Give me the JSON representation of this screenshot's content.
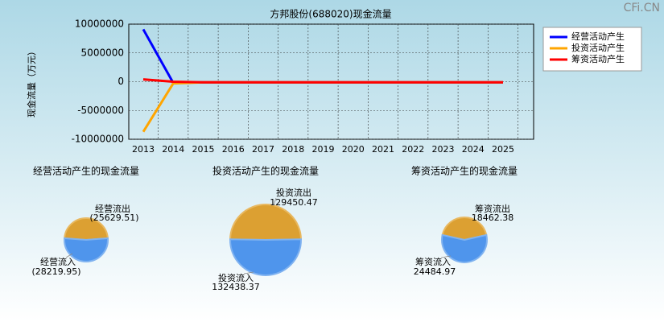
{
  "watermark": "CFi.CN",
  "chart_data": [
    {
      "type": "line",
      "title": "方邦股份(688020)现金流量",
      "ylabel": "现金流量（万元）",
      "categories": [
        "2013",
        "2014",
        "2015",
        "2016",
        "2017",
        "2018",
        "2019",
        "2020",
        "2021",
        "2022",
        "2023",
        "2024",
        "2025"
      ],
      "ylim": [
        -10000000,
        10000000
      ],
      "yticks": [
        -10000000,
        -5000000,
        0,
        5000000,
        10000000
      ],
      "grid": true,
      "series": [
        {
          "name": "经营活动产生",
          "color": "#0000ff",
          "values": [
            9100000,
            -200000,
            -100000,
            -100000,
            -100000,
            -100000,
            -100000,
            -100000,
            -100000,
            -100000,
            -100000,
            -100000,
            -100000
          ]
        },
        {
          "name": "投资活动产生",
          "color": "#ffa500",
          "values": [
            -8700000,
            -300000,
            -100000,
            -100000,
            -100000,
            -100000,
            -100000,
            -100000,
            -100000,
            -100000,
            -100000,
            -100000,
            -100000
          ]
        },
        {
          "name": "筹资活动产生",
          "color": "#ff0000",
          "values": [
            400000,
            0,
            -100000,
            -100000,
            -100000,
            -100000,
            -100000,
            -100000,
            -100000,
            -100000,
            -100000,
            -100000,
            -100000
          ]
        }
      ]
    },
    {
      "type": "pie",
      "title": "经营活动产生的现金流量",
      "categories": [
        "经营流出",
        "经营流入"
      ],
      "values": [
        25629.51,
        28219.95
      ],
      "value_labels": [
        "(25629.51)",
        "(28219.95)"
      ],
      "colors": [
        "#dca032",
        "#4f95ec"
      ]
    },
    {
      "type": "pie",
      "title": "投资活动产生的现金流量",
      "categories": [
        "投资流出",
        "投资流入"
      ],
      "values": [
        129450.47,
        132438.37
      ],
      "colors": [
        "#dca032",
        "#4f95ec"
      ]
    },
    {
      "type": "pie",
      "title": "筹资活动产生的现金流量",
      "categories": [
        "筹资流出",
        "筹资流入"
      ],
      "values": [
        18462.38,
        24484.97
      ],
      "colors": [
        "#dca032",
        "#4f95ec"
      ]
    }
  ]
}
